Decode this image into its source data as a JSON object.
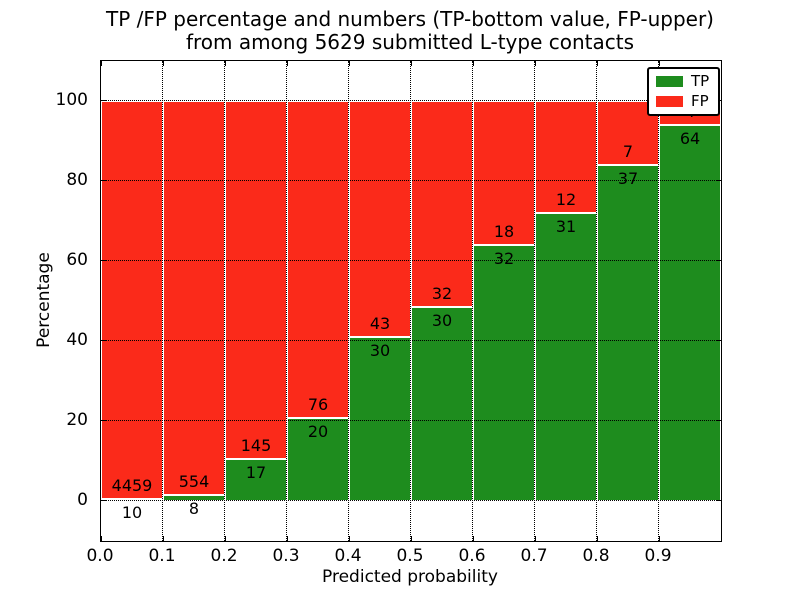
{
  "chart_data": {
    "type": "bar",
    "subtype": "stacked-percentage",
    "title": "TP /FP percentage and numbers (TP-bottom value, FP-upper)\nfrom among 5629 submitted L-type contacts",
    "title_lines": [
      "TP /FP percentage and numbers (TP-bottom value, FP-upper)",
      "from among 5629 submitted L-type contacts"
    ],
    "xlabel": "Predicted probability",
    "ylabel": "Percentage",
    "xlim": [
      0.0,
      1.0
    ],
    "ylim": [
      -10,
      110
    ],
    "x_tick_labels": [
      "0.0",
      "0.1",
      "0.2",
      "0.3",
      "0.4",
      "0.5",
      "0.6",
      "0.7",
      "0.8",
      "0.9"
    ],
    "y_tick_values": [
      0,
      20,
      40,
      60,
      80,
      100
    ],
    "grid": true,
    "legend_position": "upper right",
    "legend": [
      {
        "label": "TP",
        "color": "#1e8c1e"
      },
      {
        "label": "FP",
        "color": "#fb2a1a"
      }
    ],
    "colors": {
      "tp": "#1e8c1e",
      "fp": "#fb2a1a",
      "grid": "#000000",
      "background": "#ffffff"
    },
    "total_submitted": 5629,
    "bins": [
      {
        "range": "0.0-0.1",
        "tp": 10,
        "fp": 4459
      },
      {
        "range": "0.1-0.2",
        "tp": 8,
        "fp": 554
      },
      {
        "range": "0.2-0.3",
        "tp": 17,
        "fp": 145
      },
      {
        "range": "0.3-0.4",
        "tp": 20,
        "fp": 76
      },
      {
        "range": "0.4-0.5",
        "tp": 30,
        "fp": 43
      },
      {
        "range": "0.5-0.6",
        "tp": 30,
        "fp": 32
      },
      {
        "range": "0.6-0.7",
        "tp": 32,
        "fp": 18
      },
      {
        "range": "0.7-0.8",
        "tp": 31,
        "fp": 12
      },
      {
        "range": "0.8-0.9",
        "tp": 37,
        "fp": 7
      },
      {
        "range": "0.9-1.0",
        "tp": 64,
        "fp": 4,
        "fp_label_occluded_by_legend": true
      }
    ]
  }
}
